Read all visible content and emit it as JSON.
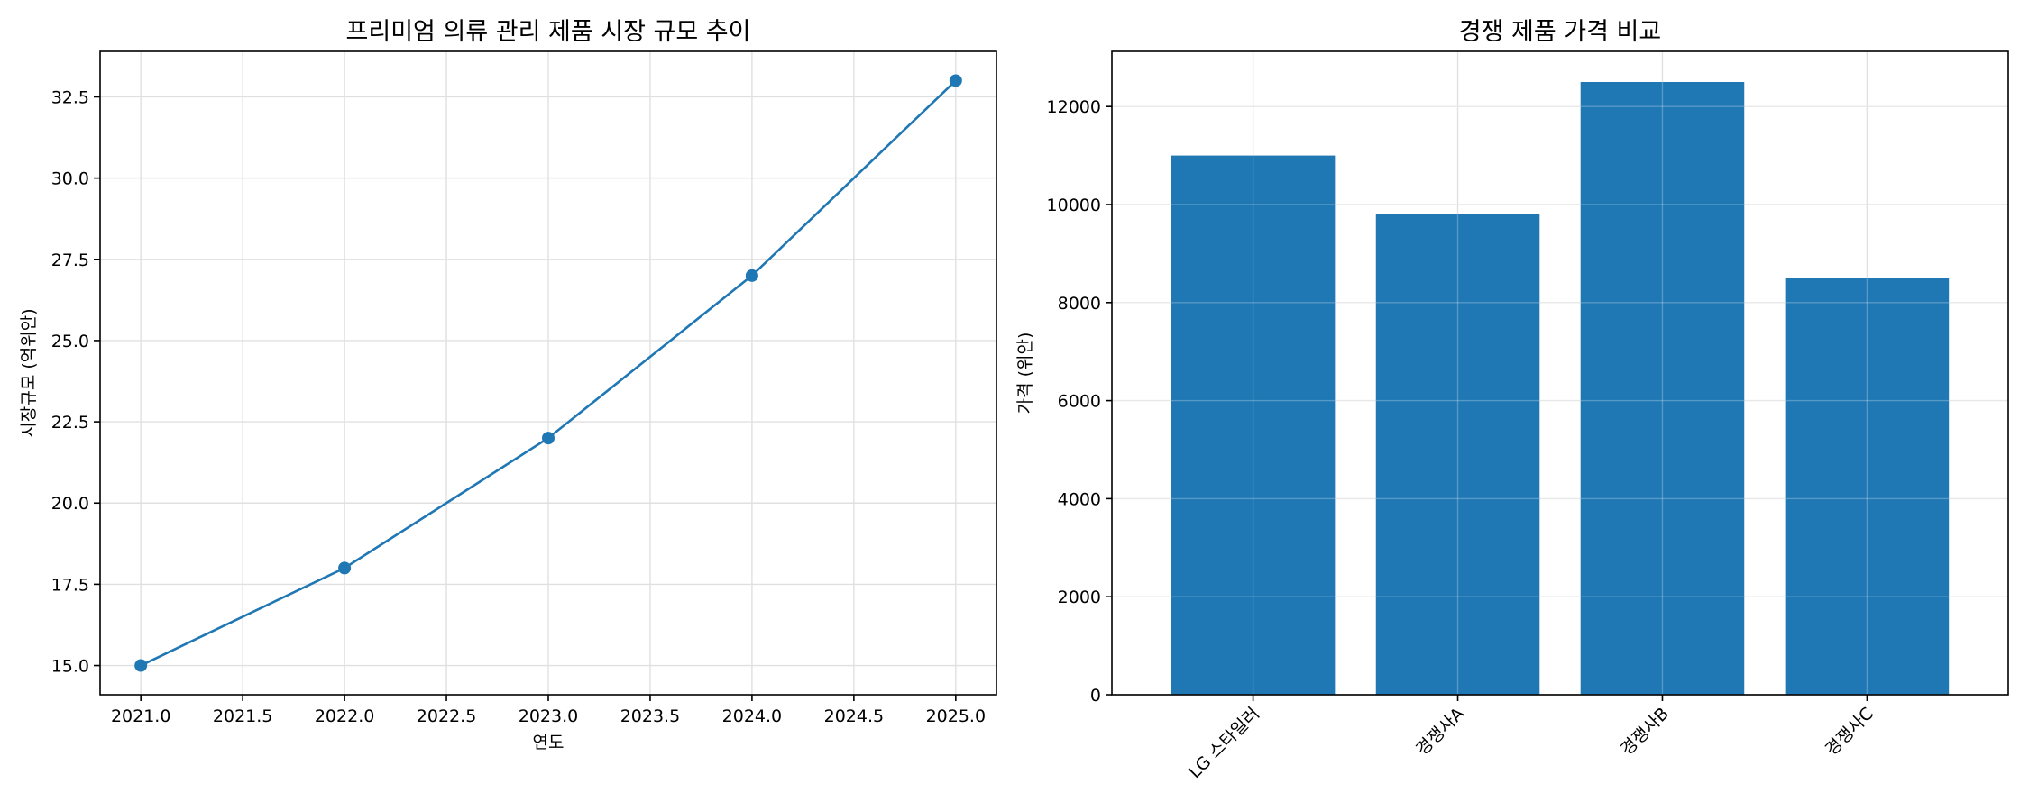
{
  "chart_data": [
    {
      "type": "line",
      "title": "프리미엄 의류 관리 제품 시장 규모 추이",
      "xlabel": "연도",
      "ylabel": "시장규모 (억위안)",
      "x": [
        2021,
        2022,
        2023,
        2024,
        2025
      ],
      "series": [
        {
          "values": [
            15,
            18,
            22,
            27,
            33
          ],
          "color": "#1f77b4",
          "marker": "circle"
        }
      ],
      "xlim": [
        2020.8,
        2025.2
      ],
      "ylim": [
        14.1,
        33.9
      ],
      "xticks": [
        2021.0,
        2021.5,
        2022.0,
        2022.5,
        2023.0,
        2023.5,
        2024.0,
        2024.5,
        2025.0
      ],
      "xtick_labels": [
        "2021.0",
        "2021.5",
        "2022.0",
        "2022.5",
        "2023.0",
        "2023.5",
        "2024.0",
        "2024.5",
        "2025.0"
      ],
      "yticks": [
        15.0,
        17.5,
        20.0,
        22.5,
        25.0,
        27.5,
        30.0,
        32.5
      ],
      "ytick_labels": [
        "15.0",
        "17.5",
        "20.0",
        "22.5",
        "25.0",
        "27.5",
        "30.0",
        "32.5"
      ],
      "grid": true
    },
    {
      "type": "bar",
      "title": "경쟁 제품 가격 비교",
      "xlabel": "",
      "ylabel": "가격 (위안)",
      "categories": [
        "LG 스타일러",
        "경쟁사A",
        "경쟁사B",
        "경쟁사C"
      ],
      "values": [
        11000,
        9800,
        12500,
        8500
      ],
      "color": "#1f77b4",
      "ylim": [
        0,
        13125
      ],
      "yticks": [
        0,
        2000,
        4000,
        6000,
        8000,
        10000,
        12000
      ],
      "ytick_labels": [
        "0",
        "2000",
        "4000",
        "6000",
        "8000",
        "10000",
        "12000"
      ],
      "xtick_rotation": -45,
      "grid": true
    }
  ]
}
